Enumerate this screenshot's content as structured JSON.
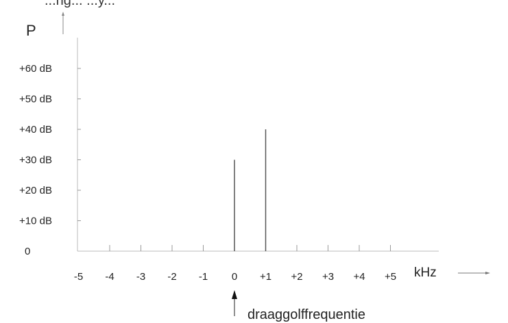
{
  "header_fragment": "...ng... ...y...",
  "chart_data": {
    "type": "bar",
    "title": "",
    "ylabel": "P",
    "xlabel": "kHz",
    "x_ticks": [
      "-5",
      "-4",
      "-3",
      "-2",
      "-1",
      "0",
      "+1",
      "+2",
      "+3",
      "+4",
      "+5"
    ],
    "y_ticks": [
      "0",
      "+10 dB",
      "+20 dB",
      "+30 dB",
      "+40 dB",
      "+50 dB",
      "+60 dB"
    ],
    "ylim": [
      0,
      60
    ],
    "xlim": [
      -5,
      5
    ],
    "x": [
      0,
      1
    ],
    "values": [
      30,
      40
    ],
    "annotation": "draaggolffrequentie",
    "annotation_x": 0,
    "grid": false
  }
}
